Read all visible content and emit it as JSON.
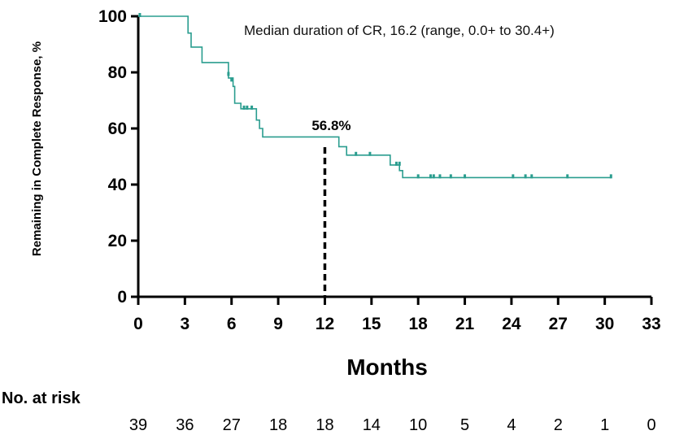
{
  "chart_data": {
    "type": "line",
    "title": "",
    "xlabel": "Months",
    "ylabel": "Remaining in Complete Response, %",
    "xlim": [
      0,
      33
    ],
    "ylim": [
      0,
      100
    ],
    "x_ticks": [
      0,
      3,
      6,
      9,
      12,
      15,
      18,
      21,
      24,
      27,
      30,
      33
    ],
    "y_ticks": [
      0,
      20,
      40,
      60,
      80,
      100
    ],
    "grid": false,
    "line_color": "#2a9d8f",
    "annotation": "Median duration of CR, 16.2 (range, 0.0+ to 30.4+)",
    "marker": {
      "x": 12,
      "y": 56.8,
      "label": "56.8%"
    },
    "series": [
      {
        "step_points": [
          [
            0,
            100
          ],
          [
            3.2,
            100
          ],
          [
            3.2,
            94
          ],
          [
            3.4,
            94
          ],
          [
            3.4,
            89
          ],
          [
            4.1,
            89
          ],
          [
            4.1,
            83.5
          ],
          [
            5.8,
            83.5
          ],
          [
            5.8,
            78
          ],
          [
            6.1,
            78
          ],
          [
            6.1,
            75
          ],
          [
            6.2,
            75
          ],
          [
            6.2,
            69
          ],
          [
            6.6,
            69
          ],
          [
            6.6,
            67
          ],
          [
            7.6,
            67
          ],
          [
            7.6,
            63
          ],
          [
            7.8,
            63
          ],
          [
            7.8,
            60
          ],
          [
            8.0,
            60
          ],
          [
            8.0,
            57
          ],
          [
            12.9,
            57
          ],
          [
            12.9,
            53.5
          ],
          [
            13.4,
            53.5
          ],
          [
            13.4,
            50.5
          ],
          [
            16.2,
            50.5
          ],
          [
            16.2,
            47
          ],
          [
            16.8,
            47
          ],
          [
            16.8,
            45
          ],
          [
            17.0,
            45
          ],
          [
            17.0,
            42.5
          ],
          [
            30.4,
            42.5
          ]
        ],
        "censored": [
          [
            0.1,
            100
          ],
          [
            5.8,
            79
          ],
          [
            6.0,
            77
          ],
          [
            6.8,
            67
          ],
          [
            7.0,
            67
          ],
          [
            7.3,
            67
          ],
          [
            14.0,
            50.5
          ],
          [
            14.9,
            50.5
          ],
          [
            16.6,
            47
          ],
          [
            16.8,
            47
          ],
          [
            18.0,
            42.5
          ],
          [
            18.8,
            42.5
          ],
          [
            19.0,
            42.5
          ],
          [
            19.4,
            42.5
          ],
          [
            20.1,
            42.5
          ],
          [
            21.0,
            42.5
          ],
          [
            24.1,
            42.5
          ],
          [
            24.9,
            42.5
          ],
          [
            25.3,
            42.5
          ],
          [
            27.6,
            42.5
          ],
          [
            30.4,
            42.5
          ]
        ]
      }
    ],
    "at_risk": {
      "title": "No. at risk",
      "values": [
        39,
        36,
        27,
        18,
        18,
        14,
        10,
        5,
        4,
        2,
        1,
        0
      ]
    }
  }
}
